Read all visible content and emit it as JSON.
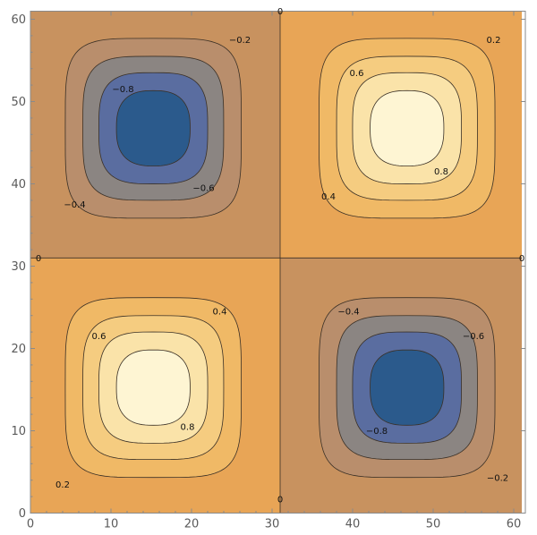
{
  "chart_data": {
    "type": "contour",
    "title": "",
    "xlabel": "",
    "ylabel": "",
    "xlim": [
      0,
      61
    ],
    "ylim": [
      0,
      61
    ],
    "x_ticks": [
      "0",
      "10",
      "20",
      "30",
      "40",
      "50",
      "60"
    ],
    "y_ticks": [
      "0",
      "10",
      "20",
      "30",
      "40",
      "50",
      "60"
    ],
    "contour_levels": [
      -0.8,
      -0.6,
      -0.4,
      -0.2,
      0,
      0.2,
      0.4,
      0.6,
      0.8
    ],
    "extrema": [
      {
        "x": 15.25,
        "y": 46.75,
        "value": -1
      },
      {
        "x": 46.75,
        "y": 46.75,
        "value": 1
      },
      {
        "x": 15.25,
        "y": 15.25,
        "value": 1
      },
      {
        "x": 46.75,
        "y": 15.25,
        "value": -1
      }
    ],
    "labels": [
      {
        "text": "0",
        "x": 31,
        "y": 61
      },
      {
        "text": "−0.2",
        "x": 26,
        "y": 57.5
      },
      {
        "text": "0.2",
        "x": 57.5,
        "y": 57.5
      },
      {
        "text": "−0.8",
        "x": 11.5,
        "y": 51.5
      },
      {
        "text": "0.6",
        "x": 40.5,
        "y": 53.5
      },
      {
        "text": "0.8",
        "x": 51,
        "y": 41.5
      },
      {
        "text": "−0.6",
        "x": 21.5,
        "y": 39.5
      },
      {
        "text": "−0.4",
        "x": 5.5,
        "y": 37.5
      },
      {
        "text": "0.4",
        "x": 37,
        "y": 38.5
      },
      {
        "text": "0",
        "x": 1,
        "y": 31
      },
      {
        "text": "0",
        "x": 61,
        "y": 31
      },
      {
        "text": "−0.4",
        "x": 39.5,
        "y": 24.5
      },
      {
        "text": "0.4",
        "x": 23.5,
        "y": 24.5
      },
      {
        "text": "0.6",
        "x": 8.5,
        "y": 21.5
      },
      {
        "text": "−0.6",
        "x": 55,
        "y": 21.5
      },
      {
        "text": "0.8",
        "x": 19.5,
        "y": 10.5
      },
      {
        "text": "−0.8",
        "x": 43,
        "y": 10
      },
      {
        "text": "0.2",
        "x": 4,
        "y": 3.5
      },
      {
        "text": "−0.2",
        "x": 58,
        "y": 4.3
      },
      {
        "text": "0",
        "x": 31,
        "y": 1.7
      }
    ],
    "colors": {
      "level_0": "#e8a556",
      "level_1": "#f0b966",
      "level_2": "#f5cc80",
      "level_3": "#fae3a9",
      "level_4": "#fef5d3",
      "level_m1": "#b98e6c",
      "level_m2": "#8b8582",
      "level_m3": "#5a6da0",
      "level_m4": "#2b5a8c",
      "contour_line": "#3a3026",
      "zero_region_negative": "#c8925f",
      "zero_region_positive": "#e8a556"
    }
  }
}
